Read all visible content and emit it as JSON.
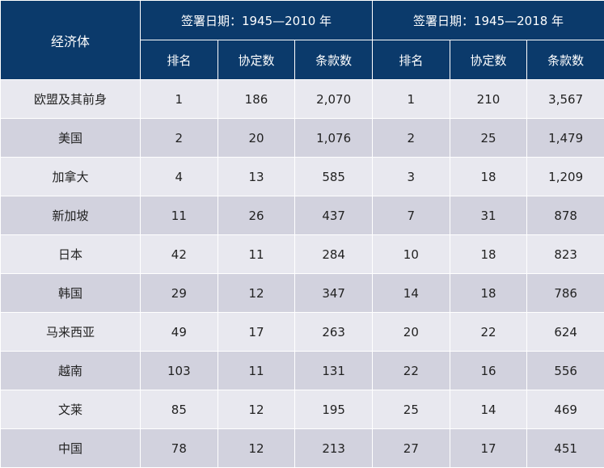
{
  "header": {
    "economy": "经济体",
    "group1": "签署日期：1945—2010 年",
    "group2": "签署日期：1945—2018 年",
    "sub": [
      "排名",
      "协定数",
      "条款数",
      "排名",
      "协定数",
      "条款数"
    ]
  },
  "rows": [
    [
      "欧盟及其前身",
      "1",
      "186",
      "2,070",
      "1",
      "210",
      "3,567"
    ],
    [
      "美国",
      "2",
      "20",
      "1,076",
      "2",
      "25",
      "1,479"
    ],
    [
      "加拿大",
      "4",
      "13",
      "585",
      "3",
      "18",
      "1,209"
    ],
    [
      "新加坡",
      "11",
      "26",
      "437",
      "7",
      "31",
      "878"
    ],
    [
      "日本",
      "42",
      "11",
      "284",
      "10",
      "18",
      "823"
    ],
    [
      "韩国",
      "29",
      "12",
      "347",
      "14",
      "18",
      "786"
    ],
    [
      "马来西亚",
      "49",
      "17",
      "263",
      "20",
      "22",
      "624"
    ],
    [
      "越南",
      "103",
      "11",
      "131",
      "22",
      "16",
      "556"
    ],
    [
      "文莱",
      "85",
      "12",
      "195",
      "25",
      "14",
      "469"
    ],
    [
      "中国",
      "78",
      "12",
      "213",
      "27",
      "17",
      "451"
    ]
  ]
}
